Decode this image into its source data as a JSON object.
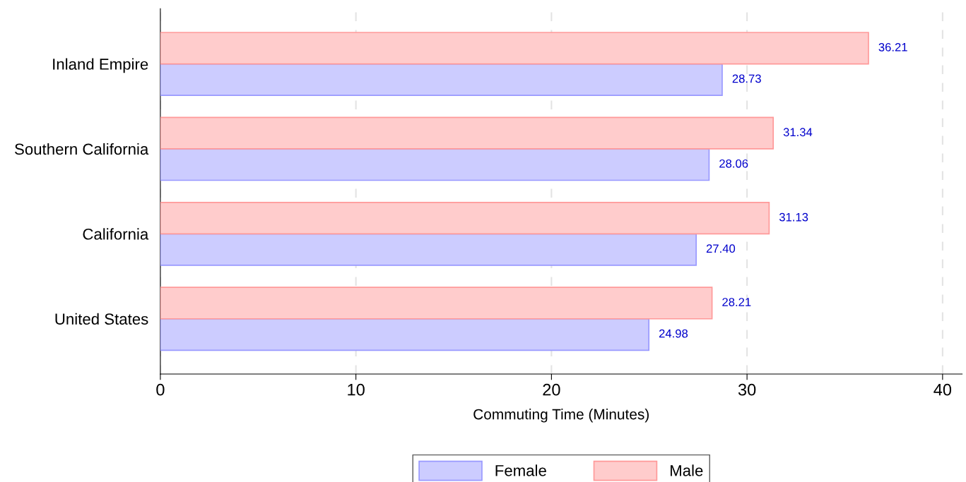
{
  "chart_data": {
    "type": "bar",
    "orientation": "horizontal",
    "xlabel": "Commuting Time (Minutes)",
    "categories": [
      "Inland Empire",
      "Southern California",
      "California",
      "United States"
    ],
    "series": [
      {
        "name": "Female",
        "color": "#ccccff",
        "values": [
          28.73,
          28.06,
          27.4,
          24.98
        ],
        "value_labels": [
          "28.73",
          "28.06",
          "27.40",
          "24.98"
        ]
      },
      {
        "name": "Male",
        "color": "#ffcccc",
        "values": [
          36.21,
          31.34,
          31.13,
          28.21
        ],
        "value_labels": [
          "36.21",
          "31.34",
          "31.13",
          "28.21"
        ]
      }
    ],
    "xlim": [
      0,
      41
    ],
    "xticks": [
      0,
      10,
      20,
      30,
      40
    ],
    "grid": "x",
    "legend": "bottom"
  }
}
